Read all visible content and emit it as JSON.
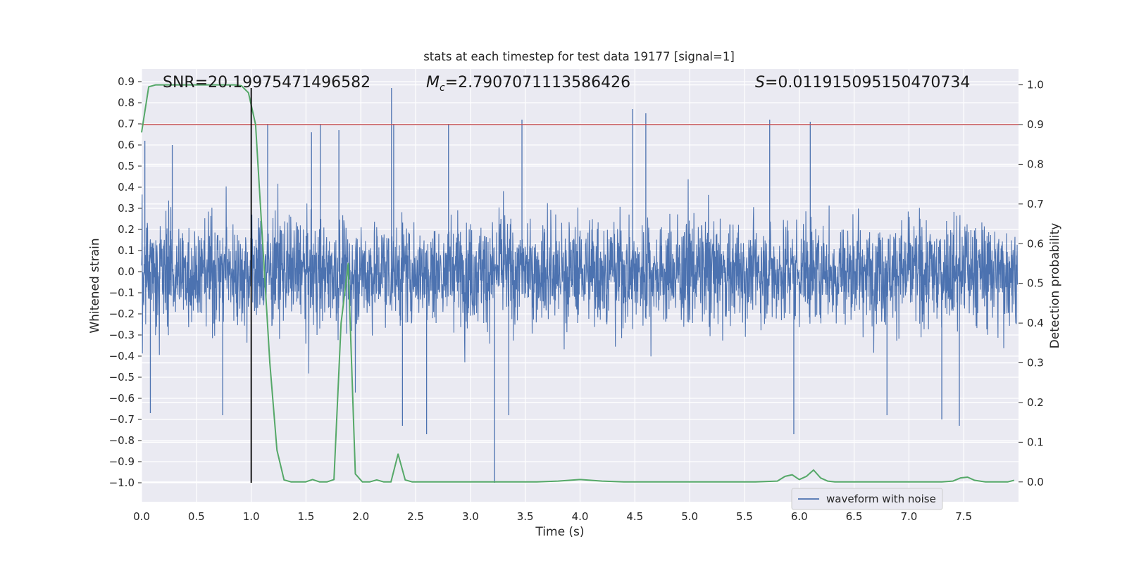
{
  "chart_data": {
    "type": "line",
    "title": "stats at each timestep for test data 19177 [signal=1]",
    "xlabel": "Time (s)",
    "ylabel_left": "Whitened strain",
    "ylabel_right": "Detection probability",
    "xlim": [
      0.0,
      8.0
    ],
    "ylim_left": [
      -1.09,
      0.96
    ],
    "ylim_right": [
      -0.05,
      1.04
    ],
    "x_ticks": [
      "0.0",
      "0.5",
      "1.0",
      "1.5",
      "2.0",
      "2.5",
      "3.0",
      "3.5",
      "4.0",
      "4.5",
      "5.0",
      "5.5",
      "6.0",
      "6.5",
      "7.0",
      "7.5"
    ],
    "y_ticks_left": [
      "-1.0",
      "-0.9",
      "-0.8",
      "-0.7",
      "-0.6",
      "-0.5",
      "-0.4",
      "-0.3",
      "-0.2",
      "-0.1",
      "0.0",
      "0.1",
      "0.2",
      "0.3",
      "0.4",
      "0.5",
      "0.6",
      "0.7",
      "0.8",
      "0.9"
    ],
    "y_ticks_right": [
      "0.0",
      "0.1",
      "0.2",
      "0.3",
      "0.4",
      "0.5",
      "0.6",
      "0.7",
      "0.8",
      "0.9",
      "1.0"
    ],
    "grid": true,
    "legend_placement": "lower-right",
    "annotations": {
      "snr": "SNR=20.19975471496582",
      "mc_prefix": "M",
      "mc_sub": "c",
      "mc_value": "=2.7907071113586426",
      "s_prefix": "S",
      "s_value": "=0.011915095150470734"
    },
    "threshold_line": {
      "y_right": 0.9,
      "color": "#c44e52"
    },
    "signal_marker": {
      "x": 1.0,
      "y_left_from": -1.0,
      "y_left_to": 0.87,
      "color": "#000000"
    },
    "series": [
      {
        "name": "waveform with noise",
        "axis": "left",
        "color": "#4c72b0",
        "kind": "dense_noise",
        "envelope": {
          "typical_top": 0.3,
          "typical_bottom": -0.35,
          "peak_max": 0.87,
          "peak_min": -1.0
        },
        "notable_spikes": [
          {
            "x": 0.03,
            "y": 0.62
          },
          {
            "x": 0.28,
            "y": 0.6
          },
          {
            "x": 1.15,
            "y": 0.7
          },
          {
            "x": 1.55,
            "y": 0.66
          },
          {
            "x": 1.63,
            "y": 0.7
          },
          {
            "x": 1.8,
            "y": 0.67
          },
          {
            "x": 2.28,
            "y": 0.87
          },
          {
            "x": 2.3,
            "y": 0.7
          },
          {
            "x": 2.8,
            "y": 0.7
          },
          {
            "x": 3.47,
            "y": 0.72
          },
          {
            "x": 4.48,
            "y": 0.77
          },
          {
            "x": 4.6,
            "y": 0.75
          },
          {
            "x": 5.73,
            "y": 0.72
          },
          {
            "x": 6.1,
            "y": 0.71
          },
          {
            "x": 3.22,
            "y": -1.0
          },
          {
            "x": 2.38,
            "y": -0.73
          },
          {
            "x": 2.6,
            "y": -0.77
          },
          {
            "x": 5.95,
            "y": -0.77
          },
          {
            "x": 7.46,
            "y": -0.73
          },
          {
            "x": 0.74,
            "y": -0.68
          },
          {
            "x": 0.08,
            "y": -0.67
          },
          {
            "x": 3.35,
            "y": -0.68
          },
          {
            "x": 6.8,
            "y": -0.68
          },
          {
            "x": 7.3,
            "y": -0.7
          }
        ]
      },
      {
        "name": "detection probability",
        "axis": "right",
        "color": "#55a868",
        "x": [
          0.0,
          0.065,
          0.13,
          0.195,
          0.26,
          0.325,
          0.39,
          0.455,
          0.52,
          0.585,
          0.65,
          0.715,
          0.78,
          0.845,
          0.91,
          0.975,
          1.04,
          1.105,
          1.17,
          1.235,
          1.3,
          1.365,
          1.43,
          1.495,
          1.56,
          1.625,
          1.69,
          1.755,
          1.82,
          1.885,
          1.95,
          2.015,
          2.08,
          2.145,
          2.21,
          2.275,
          2.34,
          2.405,
          2.47,
          2.535,
          2.6,
          2.8,
          3.0,
          3.2,
          3.4,
          3.6,
          3.8,
          4.0,
          4.2,
          4.4,
          4.6,
          4.8,
          5.0,
          5.2,
          5.4,
          5.6,
          5.8,
          5.87,
          5.935,
          6.0,
          6.065,
          6.13,
          6.195,
          6.26,
          6.325,
          6.5,
          6.7,
          6.9,
          7.1,
          7.3,
          7.4,
          7.47,
          7.535,
          7.6,
          7.7,
          7.8,
          7.9,
          7.96
        ],
        "values": [
          0.88,
          0.995,
          1.0,
          1.0,
          1.0,
          1.0,
          1.0,
          1.0,
          1.0,
          1.0,
          1.0,
          1.0,
          1.0,
          1.0,
          0.998,
          0.98,
          0.9,
          0.6,
          0.3,
          0.08,
          0.005,
          0.0,
          0.0,
          0.0,
          0.006,
          0.0,
          0.0,
          0.006,
          0.4,
          0.55,
          0.02,
          0.0,
          0.0,
          0.005,
          0.0,
          0.0,
          0.07,
          0.005,
          0.0,
          0.0,
          0.0,
          0.0,
          0.0,
          0.0,
          0.0,
          0.0,
          0.002,
          0.006,
          0.002,
          0.0,
          0.0,
          0.0,
          0.0,
          0.0,
          0.0,
          0.0,
          0.002,
          0.014,
          0.018,
          0.006,
          0.014,
          0.03,
          0.01,
          0.002,
          0.0,
          0.0,
          0.0,
          0.0,
          0.0,
          0.0,
          0.002,
          0.01,
          0.012,
          0.004,
          0.0,
          0.0,
          0.0,
          0.004
        ]
      }
    ]
  }
}
